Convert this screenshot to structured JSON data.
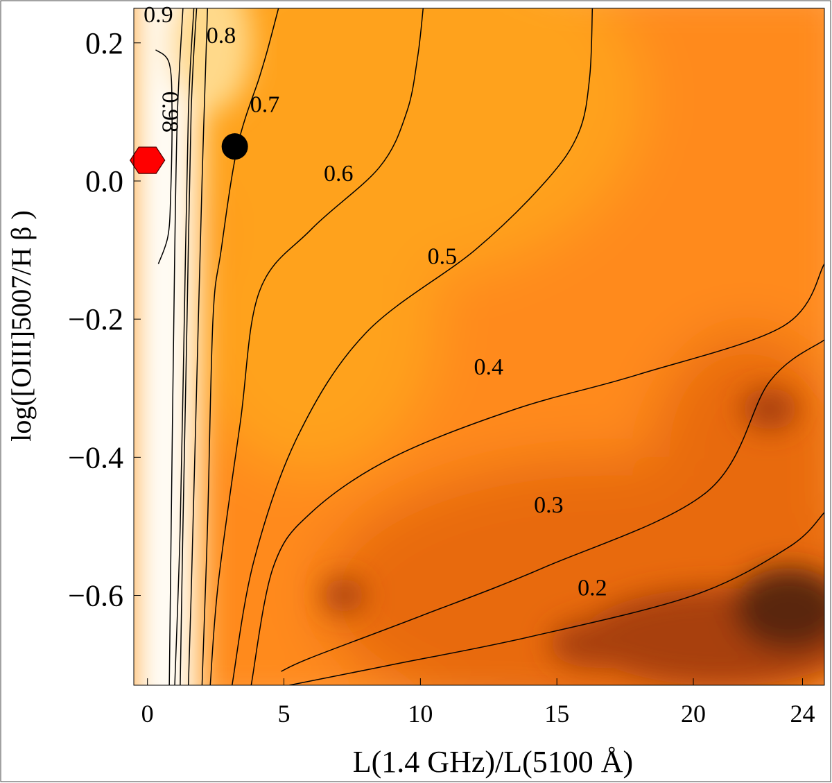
{
  "chart_data": {
    "type": "heatmap",
    "title": "",
    "xlabel": "L(1.4 GHz)/L(5100 Å)",
    "ylabel": "log([OIII]5007/H β )",
    "xlim": [
      -0.5,
      24.8
    ],
    "ylim": [
      -0.73,
      0.25
    ],
    "x_ticks": [
      0,
      5,
      10,
      15,
      20,
      24
    ],
    "x_tick_labels": [
      "0",
      "5",
      "10",
      "15",
      "20",
      "24"
    ],
    "y_ticks": [
      0.2,
      0.0,
      -0.2,
      -0.4,
      -0.6
    ],
    "y_tick_labels": [
      "0.2",
      "0.0",
      "−0.2",
      "−0.4",
      "−0.6"
    ],
    "colormap": [
      "#fffdf8",
      "#ffd98a",
      "#ffa21e",
      "#ff8a1e",
      "#e86a10",
      "#a8400c",
      "#5a2508"
    ],
    "contours": [
      {
        "level": "0.9",
        "points": [
          [
            1.3,
            0.25
          ],
          [
            1.1,
            0.1
          ],
          [
            1.0,
            -0.1
          ],
          [
            0.9,
            -0.4
          ],
          [
            0.8,
            -0.73
          ]
        ],
        "label_pos": [
          0.4,
          0.23
        ]
      },
      {
        "level": "0.98",
        "points": [
          [
            0.3,
            0.19
          ],
          [
            0.8,
            0.17
          ],
          [
            0.9,
            0.1
          ],
          [
            0.85,
            -0.02
          ],
          [
            0.75,
            -0.08
          ],
          [
            0.4,
            -0.12
          ]
        ],
        "label_pos": [
          0.55,
          0.1
        ],
        "label_rotation": 90
      },
      {
        "level": "0.8",
        "points": [
          [
            1.7,
            0.25
          ],
          [
            1.5,
            0.1
          ],
          [
            1.35,
            -0.2
          ],
          [
            1.2,
            -0.5
          ],
          [
            1.0,
            -0.73
          ]
        ],
        "label_pos": [
          2.7,
          0.2
        ]
      },
      {
        "level": "0.8",
        "points": [
          [
            1.8,
            0.25
          ],
          [
            1.6,
            0.1
          ],
          [
            1.45,
            -0.2
          ],
          [
            1.3,
            -0.5
          ],
          [
            1.2,
            -0.73
          ]
        ],
        "label_pos": null
      },
      {
        "level": "0.8",
        "points": [
          [
            2.2,
            0.25
          ],
          [
            2.0,
            0.0
          ],
          [
            1.8,
            -0.3
          ],
          [
            1.6,
            -0.6
          ],
          [
            1.5,
            -0.73
          ]
        ],
        "label_pos": null
      },
      {
        "level": "0.7",
        "points": [
          [
            4.8,
            0.25
          ],
          [
            4.4,
            0.19
          ],
          [
            4.1,
            0.15
          ],
          [
            3.3,
            0.05
          ],
          [
            2.7,
            -0.1
          ],
          [
            2.4,
            -0.2
          ],
          [
            2.2,
            -0.5
          ],
          [
            2.0,
            -0.73
          ]
        ],
        "label_pos": [
          4.3,
          0.1
        ]
      },
      {
        "level": "0.6",
        "points": [
          [
            10.1,
            0.25
          ],
          [
            9.9,
            0.18
          ],
          [
            9.5,
            0.1
          ],
          [
            8.5,
            0.02
          ],
          [
            6.0,
            -0.07
          ],
          [
            4.1,
            -0.16
          ],
          [
            3.4,
            -0.35
          ],
          [
            2.6,
            -0.58
          ],
          [
            2.3,
            -0.73
          ]
        ],
        "label_pos": [
          7.0,
          0.0
        ]
      },
      {
        "level": "0.5",
        "points": [
          [
            16.3,
            0.25
          ],
          [
            16.2,
            0.15
          ],
          [
            15.8,
            0.07
          ],
          [
            14.6,
            0.0
          ],
          [
            12.0,
            -0.1
          ],
          [
            8.0,
            -0.22
          ],
          [
            5.5,
            -0.37
          ],
          [
            3.9,
            -0.55
          ],
          [
            3.1,
            -0.73
          ]
        ],
        "label_pos": [
          10.8,
          -0.12
        ]
      },
      {
        "level": "0.4",
        "points": [
          [
            24.8,
            -0.12
          ],
          [
            23.3,
            -0.21
          ],
          [
            18.0,
            -0.28
          ],
          [
            13.5,
            -0.33
          ],
          [
            9.0,
            -0.4
          ],
          [
            6.0,
            -0.48
          ],
          [
            4.6,
            -0.56
          ],
          [
            3.8,
            -0.73
          ]
        ],
        "label_pos": [
          12.5,
          -0.28
        ]
      },
      {
        "level": "0.3",
        "points": [
          [
            24.8,
            -0.23
          ],
          [
            22.8,
            -0.29
          ],
          [
            20.5,
            -0.45
          ],
          [
            14.5,
            -0.56
          ],
          [
            10.0,
            -0.63
          ],
          [
            6.0,
            -0.69
          ],
          [
            4.9,
            -0.71
          ]
        ],
        "label_pos": [
          14.7,
          -0.48
        ]
      },
      {
        "level": "0.2",
        "points": [
          [
            24.8,
            -0.48
          ],
          [
            23.5,
            -0.53
          ],
          [
            20.0,
            -0.6
          ],
          [
            14.0,
            -0.66
          ],
          [
            9.0,
            -0.7
          ],
          [
            5.2,
            -0.73
          ]
        ],
        "label_pos": [
          16.3,
          -0.6
        ]
      }
    ],
    "markers": [
      {
        "name": "red-hexagon",
        "shape": "hexagon",
        "x": 0.0,
        "y": 0.03,
        "color": "#ff0000"
      },
      {
        "name": "black-circle",
        "shape": "circle",
        "x": 3.2,
        "y": 0.05,
        "color": "#000000"
      }
    ]
  }
}
